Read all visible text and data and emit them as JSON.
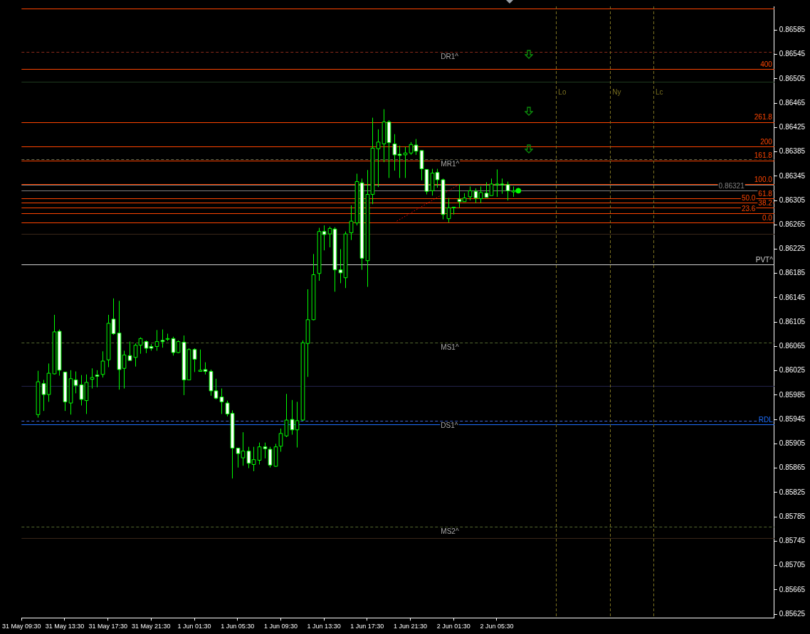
{
  "chart_data": {
    "type": "candlestick",
    "color": "#00ff00",
    "colors": [
      "#000000",
      "#ffffff",
      "#000000",
      "#000000",
      "#ffffff",
      "#ffffff",
      "#000000",
      "#ffffff",
      "#ffffff",
      "#000000",
      "#000000",
      "#ffffff",
      "#000000",
      "#000000",
      "#ffffff",
      "#ffffff",
      "#000000",
      "#ffffff",
      "#000000",
      "#000000",
      "#ffffff",
      "#ffffff",
      "#000000",
      "#ffffff",
      "#000000",
      "#ffffff",
      "#000000",
      "#ffffff",
      "#000000",
      "#ffffff",
      "#000000",
      "#ffffff",
      "#ffffff",
      "#ffffff",
      "#ffffff",
      "#ffffff",
      "#ffffff",
      "#ffffff",
      "#000000",
      "#ffffff",
      "#000000",
      "#000000",
      "#ffffff",
      "#ffffff",
      "#000000",
      "#000000",
      "#000000",
      "#ffffff",
      "#000000",
      "#000000",
      "#000000",
      "#000000",
      "#000000",
      "#ffffff",
      "#000000",
      "#ffffff",
      "#ffffff",
      "#000000",
      "#000000",
      "#000000",
      "#ffffff",
      "#000000",
      "#000000",
      "#000000",
      "#000000",
      "#ffffff",
      "#ffffff",
      "#ffffff",
      "#000000",
      "#000000",
      "#ffffff",
      "#ffffff",
      "#ffffff",
      "#000000",
      "#ffffff",
      "#ffffff",
      "#000000",
      "#000000",
      "#ffffff",
      "#000000",
      "#000000",
      "#ffffff",
      "#000000",
      "#ffffff",
      "#000000",
      "#000000",
      "#ffffff",
      "#ffffff",
      "#000000"
    ],
    "x": [
      "--05-31T11:00",
      "--05-31T11:30",
      "--05-31T12:00",
      "--05-31T12:30",
      "--05-31T13:00",
      "--05-31T13:30",
      "--05-31T14:00",
      "--05-31T14:30",
      "--05-31T15:00",
      "--05-31T15:30",
      "--05-31T16:00",
      "--05-31T16:30",
      "--05-31T17:00",
      "--05-31T17:30",
      "--05-31T18:00",
      "--05-31T18:30",
      "--05-31T19:00",
      "--05-31T19:30",
      "--05-31T20:00",
      "--05-31T20:30",
      "--05-31T21:00",
      "--05-31T21:30",
      "--05-31T22:00",
      "--05-31T22:30",
      "--05-31T23:00",
      "--05-31T23:30",
      "--06-01T00:00",
      "--06-01T00:30",
      "--06-01T01:00",
      "--06-01T01:30",
      "--06-01T02:00",
      "--06-01T02:30",
      "--06-01T03:00",
      "--06-01T03:30",
      "--06-01T04:00",
      "--06-01T04:30",
      "--06-01T05:00",
      "--06-01T05:30",
      "--06-01T06:00",
      "--06-01T06:30",
      "--06-01T07:00",
      "--06-01T07:30",
      "--06-01T08:00",
      "--06-01T08:30",
      "--06-01T09:00",
      "--06-01T09:30",
      "--06-01T10:00",
      "--06-01T10:30",
      "--06-01T11:00",
      "--06-01T11:30",
      "--06-01T12:00",
      "--06-01T12:30",
      "--06-01T13:00",
      "--06-01T13:30",
      "--06-01T14:00",
      "--06-01T14:30",
      "--06-01T15:00",
      "--06-01T15:30",
      "--06-01T16:00",
      "--06-01T16:30",
      "--06-01T17:00",
      "--06-01T17:30",
      "--06-01T18:00",
      "--06-01T18:30",
      "--06-01T19:00",
      "--06-01T19:30",
      "--06-01T20:00",
      "--06-01T20:30",
      "--06-01T21:00",
      "--06-01T21:30",
      "--06-01T22:00",
      "--06-01T22:30",
      "--06-01T23:00",
      "--06-01T23:30",
      "--06-02T00:00",
      "--06-02T00:30",
      "--06-02T01:00",
      "--06-02T01:30",
      "--06-02T02:00",
      "--06-02T02:30",
      "--06-02T03:00",
      "--06-02T03:30",
      "--06-02T04:00",
      "--06-02T04:30",
      "--06-02T05:00",
      "--06-02T05:30",
      "--06-02T06:00",
      "--06-02T06:30",
      "--06-02T07:00"
    ],
    "ohlc": [
      [
        0.85953,
        0.86025,
        0.85948,
        0.86007
      ],
      [
        0.86004,
        0.8601,
        0.85959,
        0.85986
      ],
      [
        0.85986,
        0.86037,
        0.85974,
        0.86021
      ],
      [
        0.8602,
        0.86117,
        0.86019,
        0.86089
      ],
      [
        0.8609,
        0.86093,
        0.86017,
        0.86026
      ],
      [
        0.86023,
        0.86023,
        0.85959,
        0.85974
      ],
      [
        0.85972,
        0.86026,
        0.85953,
        0.86012
      ],
      [
        0.8601,
        0.86024,
        0.85988,
        0.86001
      ],
      [
        0.86002,
        0.86018,
        0.85968,
        0.85978
      ],
      [
        0.85976,
        0.86019,
        0.85954,
        0.86006
      ],
      [
        0.86011,
        0.86029,
        0.85996,
        0.86014
      ],
      [
        0.86018,
        0.86026,
        0.85998,
        0.86016
      ],
      [
        0.86019,
        0.86057,
        0.86014,
        0.86041
      ],
      [
        0.86043,
        0.86117,
        0.86031,
        0.86103
      ],
      [
        0.8611,
        0.86144,
        0.86084,
        0.86086
      ],
      [
        0.86087,
        0.8614,
        0.85994,
        0.86027
      ],
      [
        0.86029,
        0.86058,
        0.85996,
        0.86051
      ],
      [
        0.8605,
        0.86073,
        0.86042,
        0.86042
      ],
      [
        0.86047,
        0.8607,
        0.86032,
        0.86067
      ],
      [
        0.86067,
        0.8608,
        0.86053,
        0.86078
      ],
      [
        0.86073,
        0.86075,
        0.86054,
        0.86062
      ],
      [
        0.86065,
        0.86069,
        0.86058,
        0.86062
      ],
      [
        0.86065,
        0.86092,
        0.86058,
        0.86073
      ],
      [
        0.86075,
        0.86093,
        0.86063,
        0.86073
      ],
      [
        0.86078,
        0.86086,
        0.86074,
        0.86078
      ],
      [
        0.86078,
        0.86081,
        0.8605,
        0.86055
      ],
      [
        0.86055,
        0.86075,
        0.86054,
        0.86073
      ],
      [
        0.86072,
        0.86083,
        0.85985,
        0.8601
      ],
      [
        0.8601,
        0.86062,
        0.8601,
        0.8606
      ],
      [
        0.8606,
        0.86062,
        0.86023,
        0.86044
      ],
      [
        0.86024,
        0.8606,
        0.86024,
        0.86026
      ],
      [
        0.86027,
        0.86039,
        0.86019,
        0.86024
      ],
      [
        0.86024,
        0.86027,
        0.85984,
        0.85992
      ],
      [
        0.85992,
        0.86012,
        0.85978,
        0.8598
      ],
      [
        0.85982,
        0.85996,
        0.85954,
        0.85974
      ],
      [
        0.85972,
        0.85976,
        0.8595,
        0.85954
      ],
      [
        0.85955,
        0.8596,
        0.85848,
        0.85898
      ],
      [
        0.85898,
        0.85898,
        0.85866,
        0.85889
      ],
      [
        0.85882,
        0.85924,
        0.85869,
        0.85893
      ],
      [
        0.85893,
        0.859,
        0.85865,
        0.85873
      ],
      [
        0.85871,
        0.859,
        0.8586,
        0.85879
      ],
      [
        0.85878,
        0.85907,
        0.85871,
        0.859
      ],
      [
        0.859,
        0.85907,
        0.85881,
        0.85897
      ],
      [
        0.85896,
        0.859,
        0.85866,
        0.8587
      ],
      [
        0.85868,
        0.85905,
        0.85867,
        0.859
      ],
      [
        0.85901,
        0.8593,
        0.85892,
        0.85922
      ],
      [
        0.85918,
        0.85987,
        0.85916,
        0.85944
      ],
      [
        0.85945,
        0.85977,
        0.8592,
        0.85928
      ],
      [
        0.85928,
        0.85974,
        0.85899,
        0.85943
      ],
      [
        0.85944,
        0.86075,
        0.85943,
        0.86071
      ],
      [
        0.8607,
        0.86159,
        0.86015,
        0.86109
      ],
      [
        0.86109,
        0.86217,
        0.86108,
        0.86183
      ],
      [
        0.86185,
        0.8626,
        0.86173,
        0.86254
      ],
      [
        0.86254,
        0.86264,
        0.86223,
        0.86249
      ],
      [
        0.8625,
        0.86262,
        0.86228,
        0.86259
      ],
      [
        0.86258,
        0.86261,
        0.86155,
        0.86191
      ],
      [
        0.86191,
        0.86225,
        0.86169,
        0.86186
      ],
      [
        0.86178,
        0.86254,
        0.86161,
        0.8625
      ],
      [
        0.86252,
        0.86297,
        0.8624,
        0.86271
      ],
      [
        0.86268,
        0.86349,
        0.86264,
        0.86336
      ],
      [
        0.86334,
        0.86341,
        0.86191,
        0.8621
      ],
      [
        0.86206,
        0.86355,
        0.86163,
        0.86315
      ],
      [
        0.86315,
        0.86441,
        0.86299,
        0.86391
      ],
      [
        0.8639,
        0.86422,
        0.86327,
        0.86401
      ],
      [
        0.86398,
        0.86455,
        0.86368,
        0.86434
      ],
      [
        0.86434,
        0.86437,
        0.86342,
        0.864
      ],
      [
        0.86398,
        0.86414,
        0.86354,
        0.8638
      ],
      [
        0.86381,
        0.86395,
        0.86342,
        0.86379
      ],
      [
        0.8638,
        0.86393,
        0.86342,
        0.86383
      ],
      [
        0.86383,
        0.86401,
        0.8638,
        0.86397
      ],
      [
        0.86396,
        0.86406,
        0.8638,
        0.86386
      ],
      [
        0.86387,
        0.86387,
        0.86338,
        0.86357
      ],
      [
        0.86356,
        0.86356,
        0.86315,
        0.8632
      ],
      [
        0.86321,
        0.86357,
        0.86313,
        0.8635
      ],
      [
        0.86351,
        0.86357,
        0.86326,
        0.86339
      ],
      [
        0.86339,
        0.86341,
        0.86274,
        0.86282
      ],
      [
        0.86275,
        0.86309,
        0.86269,
        0.86293
      ],
      [
        0.86293,
        0.86294,
        0.86282,
        0.86294
      ],
      [
        0.86307,
        0.86332,
        0.86293,
        0.86303
      ],
      [
        0.86303,
        0.86317,
        0.86303,
        0.86309
      ],
      [
        0.86311,
        0.86328,
        0.86305,
        0.86321
      ],
      [
        0.8632,
        0.86325,
        0.86301,
        0.86309
      ],
      [
        0.86308,
        0.86328,
        0.86301,
        0.86318
      ],
      [
        0.86317,
        0.86335,
        0.8631,
        0.8631
      ],
      [
        0.86313,
        0.86341,
        0.86313,
        0.86332
      ],
      [
        0.86332,
        0.86356,
        0.86311,
        0.86332
      ],
      [
        0.86332,
        0.86341,
        0.86316,
        0.86331
      ],
      [
        0.86331,
        0.86336,
        0.86305,
        0.86321
      ],
      [
        0.86319,
        0.86328,
        0.86311,
        0.86321
      ]
    ],
    "series": [
      {
        "type": "line",
        "x": [
          "--06-01T20:15",
          "--06-02T02:00"
        ],
        "values": [
          0.86271,
          0.86331
        ],
        "color": "#ff0000",
        "line_style": "dotted",
        "marker": "none"
      },
      {
        "type": "scatter",
        "x": [
          "--06-02T07:30"
        ],
        "values": [
          0.86321
        ],
        "color": "#00ff00",
        "marker": "circle"
      }
    ],
    "xlim": [
      "--05-31T09:30",
      "--06-03T07:12"
    ],
    "xticks": [
      {
        "value": "--05-31T09:30",
        "label": "31 May 09:30"
      },
      {
        "value": "--05-31T13:30",
        "label": "31 May 13:30"
      },
      {
        "value": "--05-31T17:30",
        "label": "31 May 17:30"
      },
      {
        "value": "--05-31T21:30",
        "label": "31 May 21:30"
      },
      {
        "value": "--06-01T01:30",
        "label": "1 Jun 01:30"
      },
      {
        "value": "--06-01T05:30",
        "label": "1 Jun 05:30"
      },
      {
        "value": "--06-01T09:30",
        "label": "1 Jun 09:30"
      },
      {
        "value": "--06-01T13:30",
        "label": "1 Jun 13:30"
      },
      {
        "value": "--06-01T17:30",
        "label": "1 Jun 17:30"
      },
      {
        "value": "--06-01T21:30",
        "label": "1 Jun 21:30"
      },
      {
        "value": "--06-02T01:30",
        "label": "2 Jun 01:30"
      },
      {
        "value": "--06-02T05:30",
        "label": "2 Jun 05:30"
      }
    ],
    "ylim": [
      0.85619,
      0.86624
    ],
    "yticks": [
      0.85625,
      0.85665,
      0.85705,
      0.85745,
      0.85785,
      0.85825,
      0.85865,
      0.85905,
      0.85945,
      0.85985,
      0.86025,
      0.86065,
      0.86105,
      0.86145,
      0.86185,
      0.86225,
      0.86265,
      0.86305,
      0.86345,
      0.86385,
      0.86425,
      0.86465,
      0.86505,
      0.86545,
      0.86585
    ],
    "ref_lines": [
      {
        "axis": "y",
        "value": 0.865,
        "color": "#1f3a1f",
        "line_style": "solid"
      },
      {
        "axis": "y",
        "value": 0.8625,
        "color": "#3a2618",
        "line_style": "solid"
      },
      {
        "axis": "y",
        "value": 0.86,
        "color": "#22224a",
        "line_style": "solid"
      },
      {
        "axis": "y",
        "value": 0.8575,
        "color": "#3a2618",
        "line_style": "solid"
      },
      {
        "axis": "y",
        "value": 0.86331,
        "color": "#808080",
        "line_style": "solid"
      },
      {
        "axis": "y",
        "value": 0.86321,
        "label": "0.86321",
        "color": "#808080",
        "line_style": "solid"
      },
      {
        "axis": "y",
        "value": 0.8662,
        "color": "#ff4500",
        "line_style": "solid"
      },
      {
        "axis": "y",
        "value": 0.86521,
        "color": "#ff4500",
        "line_style": "solid"
      },
      {
        "axis": "y",
        "value": 0.86434,
        "color": "#ff4500",
        "line_style": "solid"
      },
      {
        "axis": "y",
        "value": 0.86394,
        "color": "#ff4500",
        "line_style": "solid"
      },
      {
        "axis": "y",
        "value": 0.86371,
        "color": "#ff4500",
        "line_style": "solid"
      },
      {
        "axis": "y",
        "value": 0.86332,
        "color": "#ff4500",
        "line_style": "solid"
      },
      {
        "axis": "y",
        "value": 0.86308,
        "color": "#ff4500",
        "line_style": "solid"
      },
      {
        "axis": "y",
        "value": 0.86301,
        "color": "#ff4500",
        "line_style": "solid"
      },
      {
        "axis": "y",
        "value": 0.86293,
        "color": "#ff4500",
        "line_style": "solid"
      },
      {
        "axis": "y",
        "value": 0.86284,
        "color": "#ff4500",
        "line_style": "solid"
      },
      {
        "axis": "y",
        "value": 0.86269,
        "color": "#ff4500",
        "line_style": "solid"
      },
      {
        "axis": "y",
        "value": 0.86549,
        "label": "DR1^",
        "color": "#8b2a1a",
        "line_style": "dashed"
      },
      {
        "axis": "y",
        "value": 0.86373,
        "label": "MR1^",
        "color": "#6e6e50",
        "line_style": "dashed"
      },
      {
        "axis": "y",
        "value": 0.862,
        "label": "PVT^",
        "color": "#d0d0d0",
        "line_style": "solid"
      },
      {
        "axis": "y",
        "value": 0.86071,
        "label": "MS1^",
        "color": "#556b2f",
        "line_style": "dashed"
      },
      {
        "axis": "y",
        "value": 0.85943,
        "label": "DS1^",
        "color": "#4169e1",
        "line_style": "dashed"
      },
      {
        "axis": "y",
        "value": 0.85937,
        "label": "RDL",
        "color": "#1e6fff",
        "line_style": "solid"
      },
      {
        "axis": "y",
        "value": 0.85769,
        "label": "MS2^",
        "color": "#556b2f",
        "line_style": "dashed"
      },
      {
        "axis": "x",
        "value": "--06-02T11:00",
        "label": "Lo",
        "color": "#7a7020",
        "line_style": "dashed"
      },
      {
        "axis": "x",
        "value": "--06-02T16:00",
        "label": "Ny",
        "color": "#7a7020",
        "line_style": "dashed"
      },
      {
        "axis": "x",
        "value": "--06-02T20:00",
        "label": "Lc",
        "color": "#7a7020",
        "line_style": "dashed"
      }
    ],
    "annotations": [
      {
        "text": "400",
        "x": "--06-03T07:00",
        "y": 0.86521
      },
      {
        "text": "261.8",
        "x": "--06-03T07:00",
        "y": 0.86434
      },
      {
        "text": "200",
        "x": "--06-03T07:00",
        "y": 0.86394
      },
      {
        "text": "161.8",
        "x": "--06-03T07:00",
        "y": 0.86371
      },
      {
        "text": "100.0",
        "x": "--06-03T07:00",
        "y": 0.86332
      },
      {
        "text": "61.8",
        "x": "--06-03T07:00",
        "y": 0.86308
      },
      {
        "text": "50.0",
        "x": "--06-03T07:00",
        "y": 0.86301
      },
      {
        "text": "38.2",
        "x": "--06-03T07:00",
        "y": 0.86293
      },
      {
        "text": "23.6",
        "x": "--06-03T07:00",
        "y": 0.86284
      },
      {
        "text": "0.0",
        "x": "--06-03T07:00",
        "y": 0.86269
      }
    ],
    "grid": false,
    "legend": false
  }
}
